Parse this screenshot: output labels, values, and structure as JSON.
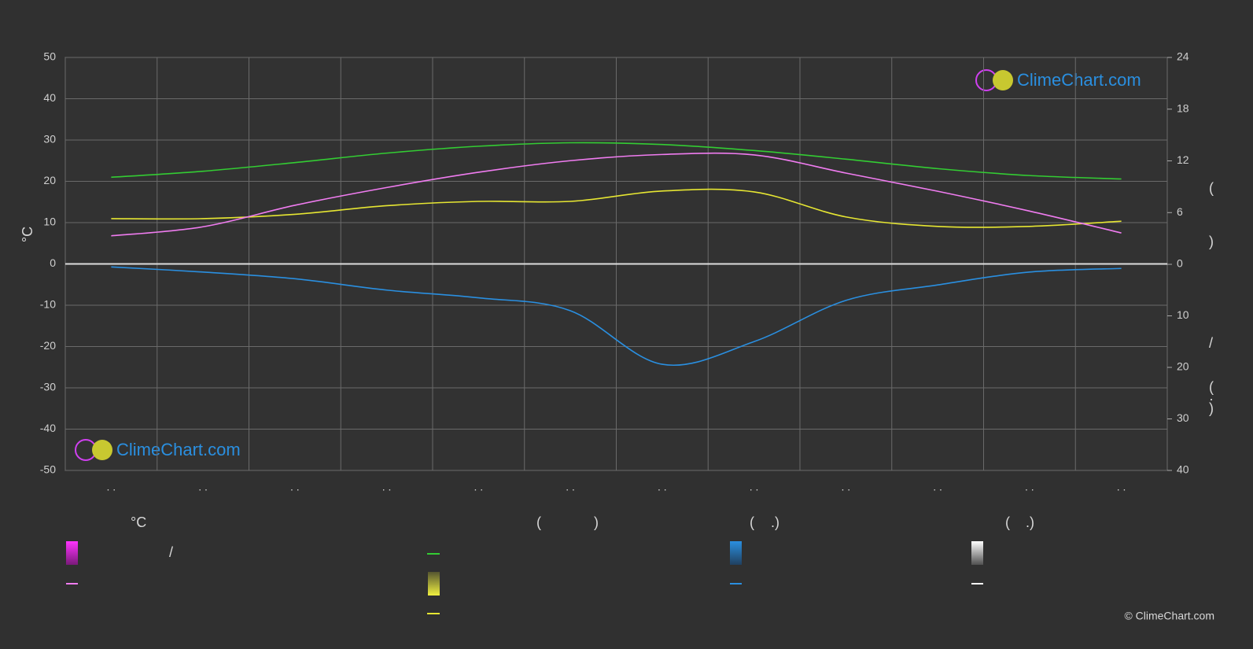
{
  "chart_data": {
    "type": "line",
    "ylabel": "°C",
    "categories": [
      ". .",
      ". .",
      ". .",
      ". .",
      ". .",
      ". .",
      ". .",
      ". .",
      ". .",
      ". .",
      ". .",
      ". ."
    ],
    "ylim": [
      -50,
      50
    ],
    "yticks": [
      -50,
      -40,
      -30,
      -20,
      -10,
      0,
      10,
      20,
      30,
      40,
      50
    ],
    "y2lim": [
      0,
      24
    ],
    "y2ticks": [
      0,
      6,
      12,
      18,
      24
    ],
    "y3lim": [
      0,
      40
    ],
    "y3ticks": [
      10,
      20,
      30,
      40
    ],
    "grid": true,
    "series": [
      {
        "color": "#33cc33",
        "axis": "y2",
        "values": [
          10.1,
          10.8,
          11.8,
          12.9,
          13.7,
          14.1,
          13.9,
          13.2,
          12.2,
          11.1,
          10.3,
          9.9
        ]
      },
      {
        "color": "#e6e632",
        "axis": "y2",
        "values": [
          5.3,
          5.3,
          5.8,
          6.8,
          7.3,
          7.3,
          8.5,
          8.4,
          5.5,
          4.4,
          4.4,
          5.0
        ]
      },
      {
        "color": "#f07cf0",
        "values": [
          6.8,
          9.0,
          14.2,
          18.5,
          22.2,
          25.0,
          26.5,
          26.4,
          22.0,
          17.6,
          12.8,
          7.5
        ]
      },
      {
        "color": "#2a8fe0",
        "axis": "y3",
        "values": [
          0.5,
          1.5,
          2.8,
          5.0,
          6.5,
          9.0,
          19.4,
          15.0,
          7.0,
          4.0,
          1.5,
          0.8
        ]
      }
    ],
    "logo": "ClimeChart.com",
    "copyright": "© ClimeChart.com",
    "legend_texts": [
      "°C",
      "/",
      "(",
      ")",
      "(",
      ".)",
      "(",
      ".)"
    ],
    "right_axis_texts": [
      "(",
      ")",
      "/",
      "(",
      "·",
      ")"
    ]
  }
}
